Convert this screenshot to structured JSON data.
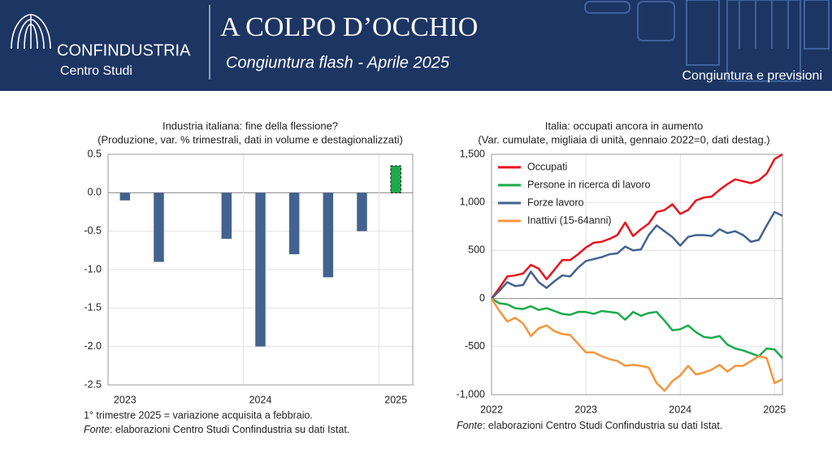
{
  "header": {
    "brand": "CONFINDUSTRIA",
    "unit": "Centro Studi",
    "title": "A COLPO D’OCCHIO",
    "subtitle": "Congiuntura flash - Aprile 2025",
    "section": "Congiuntura e previsioni"
  },
  "chart_data": [
    {
      "type": "bar",
      "title": "Industria italiana: fine della flessione?",
      "subtitle": "(Produzione, var. % trimestrali, dati in volume e destagionalizzati)",
      "categories": [
        "2023",
        null,
        null,
        null,
        "2024",
        null,
        null,
        null,
        "2025"
      ],
      "values": [
        -0.1,
        -0.9,
        0.0,
        -0.6,
        -2.0,
        -0.8,
        -1.1,
        -0.5,
        0.35
      ],
      "colors": [
        "#44628f",
        "#44628f",
        "#44628f",
        "#44628f",
        "#44628f",
        "#44628f",
        "#44628f",
        "#44628f",
        "#1aab4b"
      ],
      "bar_styles": [
        "solid",
        "solid",
        "solid",
        "solid",
        "solid",
        "solid",
        "solid",
        "solid",
        "dashed"
      ],
      "ylim": [
        -2.5,
        0.5
      ],
      "yticks": [
        {
          "value": -2.5,
          "label": "-2.5"
        },
        {
          "value": -2,
          "label": "-2.0"
        },
        {
          "value": -1.5,
          "label": "-1.5"
        },
        {
          "value": -1,
          "label": "-1.0"
        },
        {
          "value": -0.5,
          "label": "-0.5"
        },
        {
          "value": 0,
          "label": "0.0"
        },
        {
          "value": 0.5,
          "label": "0.5"
        }
      ],
      "grid": true,
      "note": "1° trimestre 2025 = variazione acquisita a febbraio.",
      "source_label": "Fonte",
      "source_text": ": elaborazioni Centro Studi Confindustria su dati Istat."
    },
    {
      "type": "line",
      "title": "Italia: occupati ancora in aumento",
      "subtitle": "(Var. cumulate, migliaia di unità, gennaio 2022=0, dati destag.)",
      "categories": [
        "2022",
        null,
        null,
        null,
        null,
        null,
        null,
        null,
        null,
        null,
        null,
        null,
        "2023",
        null,
        null,
        null,
        null,
        null,
        null,
        null,
        null,
        null,
        null,
        null,
        "2024",
        null,
        null,
        null,
        null,
        null,
        null,
        null,
        null,
        null,
        null,
        null,
        "2025",
        null
      ],
      "series": [
        {
          "name": "Occupati",
          "color": "#e8141c",
          "values": [
            0,
            110,
            230,
            240,
            260,
            350,
            310,
            200,
            300,
            400,
            400,
            460,
            530,
            580,
            590,
            620,
            660,
            790,
            650,
            720,
            780,
            900,
            920,
            980,
            880,
            920,
            1020,
            1050,
            1060,
            1130,
            1190,
            1240,
            1220,
            1200,
            1230,
            1300,
            1450,
            1500
          ]
        },
        {
          "name": "Persone in ricerca di lavoro",
          "color": "#1aab4b",
          "values": [
            0,
            -50,
            -60,
            -100,
            -110,
            -80,
            -120,
            -100,
            -130,
            -160,
            -170,
            -140,
            -140,
            -160,
            -130,
            -140,
            -150,
            -220,
            -140,
            -180,
            -150,
            -140,
            -230,
            -330,
            -320,
            -280,
            -350,
            -400,
            -410,
            -390,
            -480,
            -520,
            -540,
            -570,
            -600,
            -520,
            -530,
            -620
          ]
        },
        {
          "name": "Forze lavoro",
          "color": "#44628f",
          "values": [
            0,
            80,
            170,
            130,
            140,
            280,
            170,
            110,
            180,
            240,
            230,
            320,
            390,
            410,
            430,
            460,
            470,
            540,
            500,
            510,
            660,
            760,
            700,
            640,
            550,
            640,
            660,
            660,
            650,
            720,
            680,
            700,
            660,
            590,
            610,
            760,
            900,
            860
          ]
        },
        {
          "name": "Inattivi (15-64anni)",
          "color": "#f7953c",
          "values": [
            0,
            -130,
            -240,
            -200,
            -260,
            -390,
            -310,
            -280,
            -340,
            -370,
            -380,
            -470,
            -560,
            -560,
            -600,
            -630,
            -650,
            -700,
            -690,
            -700,
            -720,
            -880,
            -960,
            -860,
            -800,
            -700,
            -790,
            -770,
            -740,
            -690,
            -760,
            -700,
            -700,
            -650,
            -600,
            -620,
            -880,
            -840
          ]
        }
      ],
      "ylim": [
        -1000,
        1500
      ],
      "yticks": [
        {
          "value": -1000,
          "label": "-1,000"
        },
        -500,
        0,
        500,
        {
          "value": 1000,
          "label": "1,000"
        },
        {
          "value": 1500,
          "label": "1,500"
        }
      ],
      "grid": true,
      "legend": "upper left",
      "source_label": "Fonte",
      "source_text": ": elaborazioni Centro Studi Confindustria su dati Istat."
    }
  ]
}
